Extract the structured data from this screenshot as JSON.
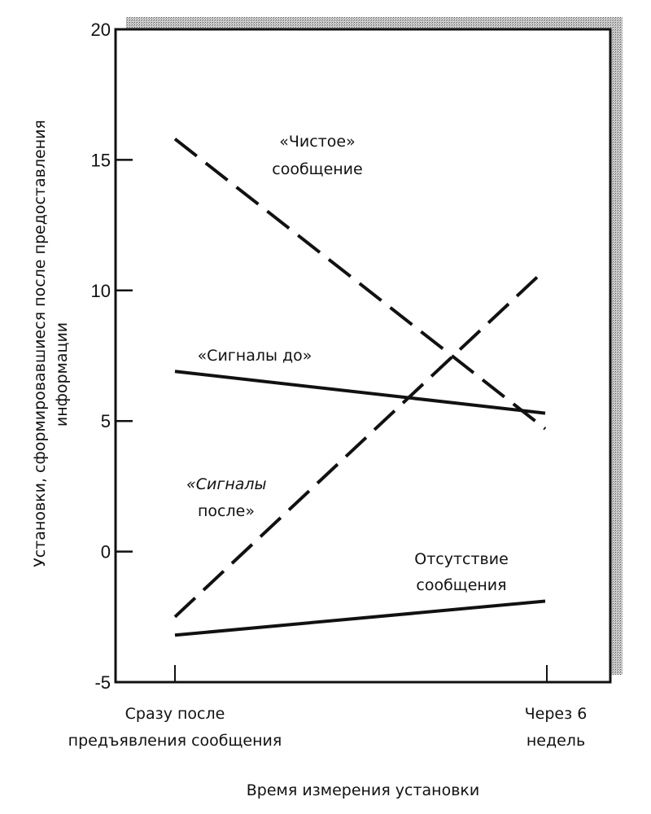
{
  "chart_data": {
    "type": "line",
    "title": "",
    "xlabel": "Время измерения установки",
    "ylabel": "Установки, сформировавшиеся после предоставления информации",
    "ylabel_lines": [
      "Установки, сформировавшиеся после предоставления",
      "информации"
    ],
    "ylim": [
      -5,
      20
    ],
    "yticks": [
      20,
      15,
      10,
      5,
      0,
      -5
    ],
    "categories": [
      "Сразу после предъявления сообщения",
      "Через 6 недель"
    ],
    "category_lines": [
      [
        "Сразу после",
        "предъявления сообщения"
      ],
      [
        "Через 6",
        "недель"
      ]
    ],
    "grid": false,
    "legend": "inline labels",
    "series": [
      {
        "name": "«Чистое» сообщение",
        "label_lines": [
          "«Чистое»",
          "сообщение"
        ],
        "style": "dashed",
        "values": [
          15.8,
          4.7
        ]
      },
      {
        "name": "«Сигналы до»",
        "label_lines": [
          "«Сигналы до»"
        ],
        "style": "solid",
        "values": [
          6.9,
          5.3
        ]
      },
      {
        "name": "«Сигналы после»",
        "label_lines": [
          "«Сигналы",
          "после»"
        ],
        "style": "dashed",
        "values": [
          -2.5,
          10.8
        ]
      },
      {
        "name": "Отсутствие сообщения",
        "label_lines": [
          "Отсутствие",
          "сообщения"
        ],
        "style": "solid",
        "values": [
          -3.2,
          -1.9
        ]
      }
    ]
  },
  "colors": {
    "line": "#111111",
    "frame": "#111111",
    "shadow": "#9a9a9a",
    "background": "#ffffff"
  }
}
